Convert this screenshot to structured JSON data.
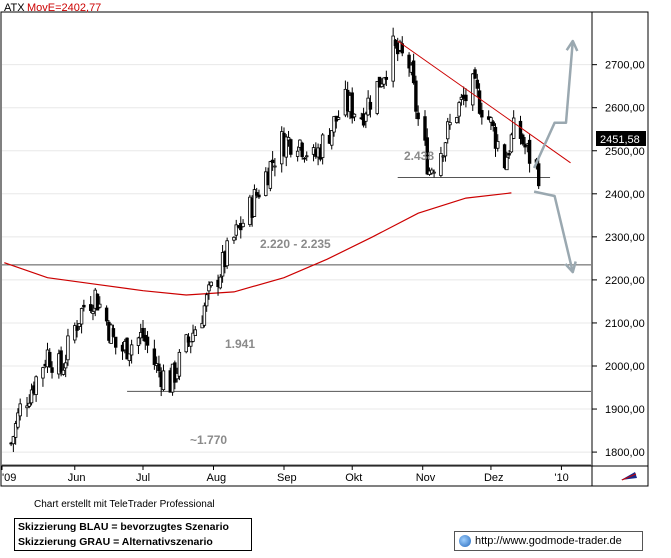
{
  "header": {
    "symbol": "ATX",
    "indicator_label": "MovE=2402,77"
  },
  "price_tag": "2451,58",
  "footer": {
    "credit": "Chart erstellt mit TeleTrader Professional",
    "legend_line1": "Skizzierung BLAU = bevorzugtes Szenario",
    "legend_line2": "Skizzierung GRAU = Alternativszenario",
    "url": "http://www.godmode-trader.de"
  },
  "annotations": {
    "support_high": "2.438",
    "support_mid": "2.220 - 2.235",
    "support_low": "1.941",
    "support_bottom": "~1.770"
  },
  "colors": {
    "candle": "#000000",
    "moving_average": "#cc0000",
    "trendline": "#cc0000",
    "scenario_arrow": "#9aa8b0",
    "support_line": "#555555"
  },
  "chart_data": {
    "type": "candlestick",
    "title": "ATX",
    "x_tick_labels": [
      "'09",
      "Jun",
      "Jul",
      "Aug",
      "Sep",
      "Okt",
      "Nov",
      "Dez",
      "'10"
    ],
    "y_tick_labels": [
      "2700,00",
      "2600,00",
      "2500,00",
      "2400,00",
      "2300,00",
      "2200,00",
      "2100,00",
      "2000,00",
      "1900,00",
      "1800,00"
    ],
    "ylim": [
      1770,
      2820
    ],
    "last_price": 2451.58,
    "moving_average_last": 2402.77,
    "horizontal_levels": [
      2438,
      2235,
      1941,
      1770
    ],
    "moving_average": [
      {
        "date": "2009-05-01",
        "value": 2240
      },
      {
        "date": "2009-05-20",
        "value": 2205
      },
      {
        "date": "2009-06-10",
        "value": 2190
      },
      {
        "date": "2009-07-01",
        "value": 2175
      },
      {
        "date": "2009-07-20",
        "value": 2165
      },
      {
        "date": "2009-08-10",
        "value": 2172
      },
      {
        "date": "2009-09-01",
        "value": 2205
      },
      {
        "date": "2009-09-20",
        "value": 2248
      },
      {
        "date": "2009-10-10",
        "value": 2300
      },
      {
        "date": "2009-10-30",
        "value": 2355
      },
      {
        "date": "2009-11-20",
        "value": 2390
      },
      {
        "date": "2009-12-10",
        "value": 2402
      }
    ],
    "trendline": [
      {
        "date": "2009-10-21",
        "value": 2755
      },
      {
        "date": "2010-01-05",
        "value": 2472
      }
    ],
    "preferred_scenario": [
      {
        "date": "2009-12-20",
        "value": 2460
      },
      {
        "date": "2009-12-29",
        "value": 2565
      },
      {
        "date": "2010-01-03",
        "value": 2565
      },
      {
        "date": "2010-01-06",
        "value": 2755
      }
    ],
    "alternative_scenario": [
      {
        "date": "2009-12-20",
        "value": 2405
      },
      {
        "date": "2009-12-29",
        "value": 2395
      },
      {
        "date": "2010-01-06",
        "value": 2218
      }
    ],
    "price_path": [
      {
        "date": "2009-05-04",
        "value": 1820
      },
      {
        "date": "2009-05-08",
        "value": 1900
      },
      {
        "date": "2009-05-14",
        "value": 1960
      },
      {
        "date": "2009-05-20",
        "value": 2030
      },
      {
        "date": "2009-05-26",
        "value": 1990
      },
      {
        "date": "2009-06-01",
        "value": 2090
      },
      {
        "date": "2009-06-05",
        "value": 2140
      },
      {
        "date": "2009-06-10",
        "value": 2165
      },
      {
        "date": "2009-06-15",
        "value": 2105
      },
      {
        "date": "2009-06-20",
        "value": 2030
      },
      {
        "date": "2009-06-25",
        "value": 2050
      },
      {
        "date": "2009-07-01",
        "value": 2070
      },
      {
        "date": "2009-07-07",
        "value": 1995
      },
      {
        "date": "2009-07-13",
        "value": 1960
      },
      {
        "date": "2009-07-20",
        "value": 2045
      },
      {
        "date": "2009-07-27",
        "value": 2125
      },
      {
        "date": "2009-08-03",
        "value": 2210
      },
      {
        "date": "2009-08-10",
        "value": 2295
      },
      {
        "date": "2009-08-17",
        "value": 2365
      },
      {
        "date": "2009-08-24",
        "value": 2445
      },
      {
        "date": "2009-08-31",
        "value": 2520
      },
      {
        "date": "2009-09-07",
        "value": 2530
      },
      {
        "date": "2009-09-14",
        "value": 2480
      },
      {
        "date": "2009-09-21",
        "value": 2545
      },
      {
        "date": "2009-09-28",
        "value": 2610
      },
      {
        "date": "2009-10-05",
        "value": 2585
      },
      {
        "date": "2009-10-12",
        "value": 2650
      },
      {
        "date": "2009-10-19",
        "value": 2735
      },
      {
        "date": "2009-10-26",
        "value": 2700
      },
      {
        "date": "2009-10-30",
        "value": 2570
      },
      {
        "date": "2009-11-04",
        "value": 2455
      },
      {
        "date": "2009-11-09",
        "value": 2505
      },
      {
        "date": "2009-11-16",
        "value": 2595
      },
      {
        "date": "2009-11-23",
        "value": 2645
      },
      {
        "date": "2009-11-30",
        "value": 2575
      },
      {
        "date": "2009-12-07",
        "value": 2475
      },
      {
        "date": "2009-12-12",
        "value": 2560
      },
      {
        "date": "2009-12-17",
        "value": 2495
      },
      {
        "date": "2009-12-22",
        "value": 2452
      }
    ]
  }
}
